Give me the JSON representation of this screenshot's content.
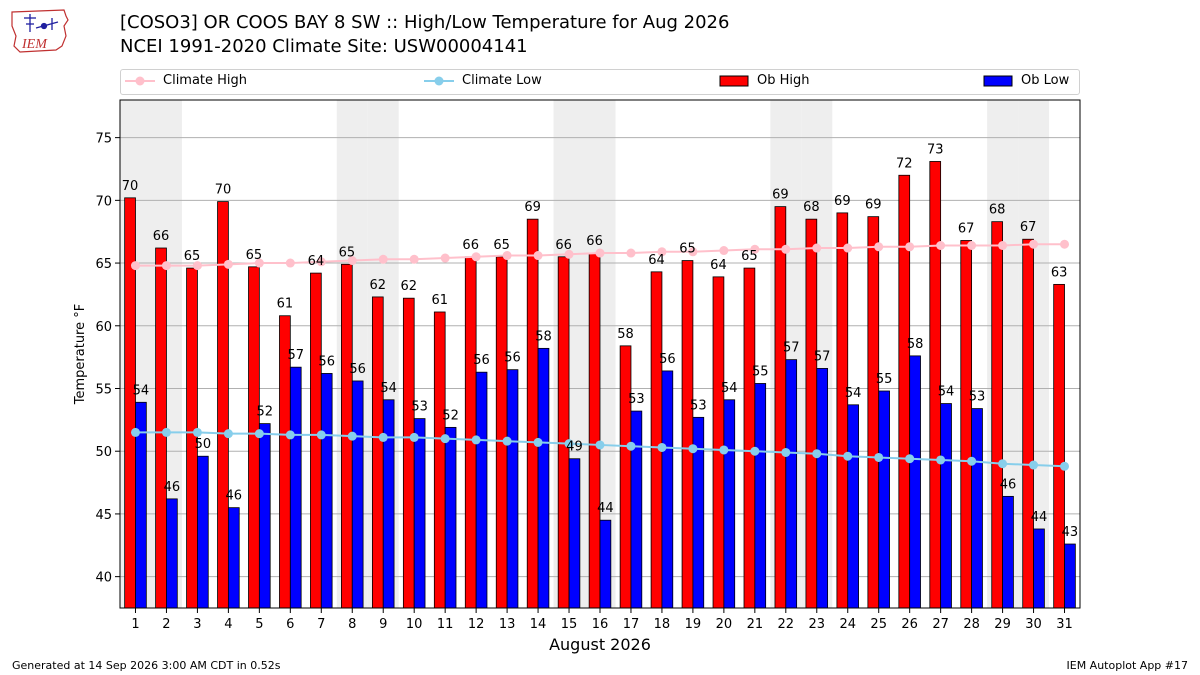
{
  "header": {
    "logo_text": "IEM",
    "title": "[COSO3] OR COOS BAY 8 SW :: High/Low Temperature for Aug 2026",
    "subtitle": "NCEI 1991-2020 Climate Site: USW00004141"
  },
  "colors": {
    "ob_high": "#ff0000",
    "ob_low": "#0000ff",
    "climate_high": "#ffc0cb",
    "climate_low": "#87ceeb",
    "weekend_band": "#eeeeee",
    "grid": "#b0b0b0"
  },
  "legend": {
    "items": [
      {
        "label": "Climate High",
        "kind": "line",
        "color": "#ffc0cb"
      },
      {
        "label": "Climate Low",
        "kind": "line",
        "color": "#87ceeb"
      },
      {
        "label": "Ob High",
        "kind": "bar",
        "color": "#ff0000"
      },
      {
        "label": "Ob Low",
        "kind": "bar",
        "color": "#0000ff"
      }
    ]
  },
  "chart_data": {
    "type": "bar",
    "xlabel": "August 2026",
    "ylabel": "Temperature °F",
    "ylim": [
      37.5,
      78
    ],
    "yticks": [
      40,
      45,
      50,
      55,
      60,
      65,
      70,
      75
    ],
    "grid": true,
    "legend_position": "top",
    "categories": [
      "1",
      "2",
      "3",
      "4",
      "5",
      "6",
      "7",
      "8",
      "9",
      "10",
      "11",
      "12",
      "13",
      "14",
      "15",
      "16",
      "17",
      "18",
      "19",
      "20",
      "21",
      "22",
      "23",
      "24",
      "25",
      "26",
      "27",
      "28",
      "29",
      "30",
      "31"
    ],
    "shaded_days": [
      1,
      2,
      8,
      9,
      15,
      16,
      22,
      23,
      29,
      30
    ],
    "series": [
      {
        "name": "Ob High",
        "kind": "bar",
        "values": [
          70,
          66,
          65,
          70,
          65,
          61,
          64,
          65,
          62,
          62,
          61,
          66,
          65,
          69,
          66,
          66,
          58,
          64,
          65,
          64,
          65,
          69,
          68,
          69,
          69,
          72,
          73,
          67,
          68,
          67,
          63
        ],
        "plotted": [
          70.2,
          66.2,
          64.6,
          69.9,
          64.7,
          60.8,
          64.2,
          64.9,
          62.3,
          62.2,
          61.1,
          65.5,
          65.5,
          68.5,
          65.5,
          65.8,
          58.4,
          64.3,
          65.2,
          63.9,
          64.6,
          69.5,
          68.5,
          69.0,
          68.7,
          72.0,
          73.1,
          66.8,
          68.3,
          66.9,
          63.3
        ]
      },
      {
        "name": "Ob Low",
        "kind": "bar",
        "values": [
          54,
          46,
          50,
          46,
          52,
          57,
          56,
          56,
          54,
          53,
          52,
          56,
          56,
          58,
          49,
          44,
          53,
          56,
          53,
          54,
          55,
          57,
          57,
          54,
          55,
          58,
          54,
          53,
          46,
          44,
          43
        ],
        "plotted": [
          53.9,
          46.2,
          49.6,
          45.5,
          52.2,
          56.7,
          56.2,
          55.6,
          54.1,
          52.6,
          51.9,
          56.3,
          56.5,
          58.2,
          49.4,
          44.5,
          53.2,
          56.4,
          52.7,
          54.1,
          55.4,
          57.3,
          56.6,
          53.7,
          54.8,
          57.6,
          53.8,
          53.4,
          46.4,
          43.8,
          42.6
        ]
      },
      {
        "name": "Climate High",
        "kind": "line",
        "values": [
          64.8,
          64.8,
          64.8,
          64.9,
          65.0,
          65.0,
          65.1,
          65.2,
          65.3,
          65.3,
          65.4,
          65.5,
          65.6,
          65.6,
          65.7,
          65.8,
          65.8,
          65.9,
          65.9,
          66.0,
          66.1,
          66.1,
          66.2,
          66.2,
          66.3,
          66.3,
          66.4,
          66.4,
          66.4,
          66.5,
          66.5
        ]
      },
      {
        "name": "Climate Low",
        "kind": "line",
        "values": [
          51.5,
          51.5,
          51.5,
          51.4,
          51.4,
          51.3,
          51.3,
          51.2,
          51.1,
          51.1,
          51.0,
          50.9,
          50.8,
          50.7,
          50.6,
          50.5,
          50.4,
          50.3,
          50.2,
          50.1,
          50.0,
          49.9,
          49.8,
          49.6,
          49.5,
          49.4,
          49.3,
          49.2,
          49.0,
          48.9,
          48.8
        ]
      }
    ]
  },
  "footer": {
    "left": "Generated at 14 Sep 2026 3:00 AM CDT in 0.52s",
    "right": "IEM Autoplot App #17"
  }
}
